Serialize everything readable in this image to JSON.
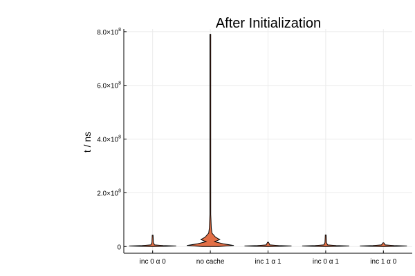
{
  "chart_data": {
    "type": "violin",
    "title": "After Initialization",
    "xlabel": "",
    "ylabel": "t / ns",
    "ylim": [
      -25000000.0,
      810000000.0
    ],
    "yticks": [
      {
        "value": 0,
        "label": "0"
      },
      {
        "value": 200000000.0,
        "mantissa": "2.0×10",
        "exponent": "8"
      },
      {
        "value": 400000000.0,
        "mantissa": "4.0×10",
        "exponent": "8"
      },
      {
        "value": 600000000.0,
        "mantissa": "6.0×10",
        "exponent": "8"
      },
      {
        "value": 800000000.0,
        "mantissa": "8.0×10",
        "exponent": "8"
      }
    ],
    "categories": [
      "inc 0 α 0",
      "no cache",
      "inc 1 α 1",
      "inc 0 α 1",
      "inc 1 α 0"
    ],
    "grid": true,
    "legend": "none",
    "fill_color": "#e26f46",
    "series": [
      {
        "category": "inc 0 α 0",
        "min": 0,
        "max": 42000000.0,
        "profile": [
          [
            0,
            0.04
          ],
          [
            1000000.0,
            0.6
          ],
          [
            2000000.0,
            1.0
          ],
          [
            3500000.0,
            0.45
          ],
          [
            6000000.0,
            0.08
          ],
          [
            15000000.0,
            0.03
          ],
          [
            42000000.0,
            0.01
          ]
        ]
      },
      {
        "category": "no cache",
        "min": 0,
        "max": 790000000.0,
        "profile": [
          [
            0,
            0.35
          ],
          [
            4000000.0,
            1.0
          ],
          [
            10000000.0,
            0.55
          ],
          [
            18000000.0,
            0.18
          ],
          [
            26000000.0,
            0.4
          ],
          [
            35000000.0,
            0.22
          ],
          [
            50000000.0,
            0.07
          ],
          [
            70000000.0,
            0.04
          ],
          [
            120000000.0,
            0.015
          ],
          [
            300000000.0,
            0.005
          ],
          [
            790000000.0,
            0.005
          ]
        ]
      },
      {
        "category": "inc 1 α 1",
        "min": 0,
        "max": 16000000.0,
        "profile": [
          [
            0,
            0.04
          ],
          [
            1000000.0,
            0.6
          ],
          [
            2000000.0,
            1.0
          ],
          [
            3500000.0,
            0.45
          ],
          [
            6000000.0,
            0.08
          ],
          [
            16000000.0,
            0.01
          ]
        ]
      },
      {
        "category": "inc 0 α 1",
        "min": 0,
        "max": 43000000.0,
        "profile": [
          [
            0,
            0.04
          ],
          [
            1000000.0,
            0.6
          ],
          [
            2000000.0,
            1.0
          ],
          [
            3500000.0,
            0.45
          ],
          [
            6000000.0,
            0.08
          ],
          [
            15000000.0,
            0.03
          ],
          [
            43000000.0,
            0.01
          ]
        ]
      },
      {
        "category": "inc 1 α 0",
        "min": 0,
        "max": 14000000.0,
        "profile": [
          [
            0,
            0.04
          ],
          [
            1000000.0,
            0.6
          ],
          [
            2000000.0,
            1.0
          ],
          [
            3500000.0,
            0.45
          ],
          [
            6000000.0,
            0.08
          ],
          [
            14000000.0,
            0.01
          ]
        ]
      }
    ]
  }
}
